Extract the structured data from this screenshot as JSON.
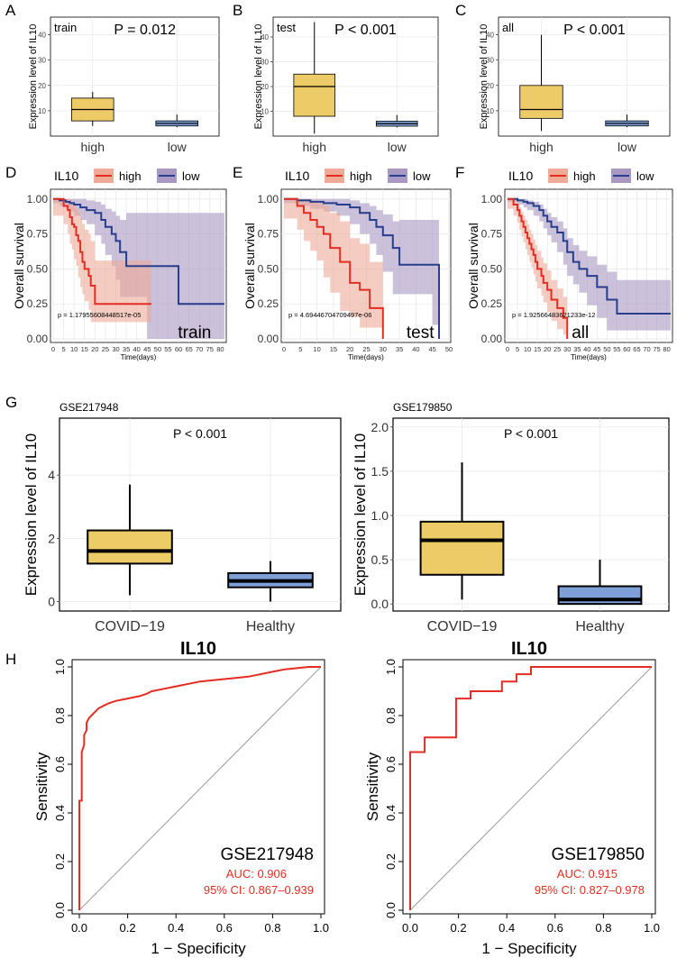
{
  "figure": {
    "panel_letters": [
      "A",
      "B",
      "C",
      "D",
      "E",
      "F",
      "G",
      "H"
    ],
    "colors": {
      "high_fill": "#EDCB66",
      "low_fill": "#7F9FD9",
      "km_high": "#E32D22",
      "km_low": "#283E8C",
      "km_high_band": "#EFAA98",
      "km_low_band": "#A898C2",
      "roc": "#E32D22",
      "grid": "#E6E6E6",
      "diag": "#9A9A9A"
    }
  },
  "chart_data": [
    {
      "id": "A",
      "type": "box",
      "subset_label": "train",
      "pvalue": "P = 0.012",
      "ylabel": "Expression level of IL10",
      "ylim": [
        0,
        47
      ],
      "yticks": [
        10,
        20,
        30,
        40
      ],
      "categories": [
        "high",
        "low"
      ],
      "boxes": [
        {
          "min": 4,
          "q1": 6,
          "median": 10.5,
          "q3": 15,
          "max": 17.5
        },
        {
          "min": 3.5,
          "q1": 4,
          "median": 5,
          "q3": 6,
          "max": 8.5
        }
      ]
    },
    {
      "id": "B",
      "type": "box",
      "subset_label": "test",
      "pvalue": "P < 0.001",
      "ylabel": "Expression level of IL10",
      "ylim": [
        0,
        48
      ],
      "yticks": [
        10,
        20,
        30,
        40
      ],
      "categories": [
        "high",
        "low"
      ],
      "boxes": [
        {
          "min": 1,
          "q1": 8,
          "median": 20,
          "q3": 25,
          "max": 46
        },
        {
          "min": 3.5,
          "q1": 4,
          "median": 5,
          "q3": 6,
          "max": 8.5
        }
      ]
    },
    {
      "id": "C",
      "type": "box",
      "subset_label": "all",
      "pvalue": "P < 0.001",
      "ylabel": "Expression level of IL10",
      "ylim": [
        0,
        47
      ],
      "yticks": [
        10,
        20,
        30,
        40
      ],
      "categories": [
        "high",
        "low"
      ],
      "boxes": [
        {
          "min": 2,
          "q1": 7,
          "median": 10.5,
          "q3": 20,
          "max": 40
        },
        {
          "min": 3.5,
          "q1": 4,
          "median": 5,
          "q3": 6,
          "max": 8.5
        }
      ]
    },
    {
      "id": "D",
      "type": "line",
      "legend_title": "IL10",
      "legend": [
        "high",
        "low"
      ],
      "ylabel": "Overall survival",
      "xlabel": "Time(days)",
      "xlim": [
        0,
        82
      ],
      "ylim": [
        0,
        1.05
      ],
      "xticks": [
        0,
        5,
        10,
        15,
        20,
        25,
        30,
        35,
        40,
        45,
        50,
        55,
        60,
        65,
        70,
        75,
        80
      ],
      "yticks": [
        "0.00",
        "0.25",
        "0.50",
        "0.75",
        "1.00"
      ],
      "pvalue": "p = 1.17955608448517e-05",
      "subset_label": "train",
      "series": [
        {
          "name": "high",
          "x": [
            0,
            5,
            7,
            8,
            9,
            10,
            11,
            12,
            13,
            14,
            15,
            17,
            18,
            20,
            47
          ],
          "y": [
            1.0,
            0.95,
            0.92,
            0.87,
            0.82,
            0.8,
            0.74,
            0.7,
            0.62,
            0.55,
            0.5,
            0.45,
            0.38,
            0.25,
            0.25
          ],
          "lower": [
            1.0,
            0.88,
            0.82,
            0.75,
            0.68,
            0.64,
            0.57,
            0.52,
            0.44,
            0.37,
            0.32,
            0.27,
            0.21,
            0.12,
            0.12
          ],
          "upper": [
            1.0,
            1.0,
            1.0,
            0.99,
            0.97,
            0.96,
            0.93,
            0.91,
            0.86,
            0.82,
            0.78,
            0.75,
            0.7,
            0.56,
            0.56
          ]
        },
        {
          "name": "low",
          "x": [
            0,
            3,
            6,
            8,
            10,
            13,
            16,
            20,
            23,
            25,
            28,
            30,
            32,
            35,
            40,
            45,
            60,
            82
          ],
          "y": [
            1.0,
            0.99,
            0.98,
            0.97,
            0.96,
            0.94,
            0.92,
            0.9,
            0.85,
            0.8,
            0.75,
            0.7,
            0.62,
            0.52,
            0.52,
            0.52,
            0.25,
            0.25
          ],
          "lower": [
            1.0,
            0.97,
            0.95,
            0.93,
            0.91,
            0.88,
            0.85,
            0.82,
            0.74,
            0.68,
            0.6,
            0.52,
            0.42,
            0.3,
            0.3,
            0.3,
            0.0,
            0.0
          ],
          "upper": [
            1.0,
            1.0,
            1.0,
            1.0,
            1.0,
            1.0,
            0.99,
            0.98,
            0.96,
            0.93,
            0.91,
            0.88,
            0.85,
            0.9,
            0.9,
            0.9,
            0.9,
            0.9
          ]
        }
      ]
    },
    {
      "id": "E",
      "type": "line",
      "legend_title": "IL10",
      "legend": [
        "high",
        "low"
      ],
      "ylabel": "Overall survival",
      "xlabel": "Time(days)",
      "xlim": [
        0,
        50
      ],
      "ylim": [
        0,
        1.05
      ],
      "xticks": [
        0,
        5,
        10,
        15,
        20,
        25,
        30,
        35,
        40,
        45,
        50
      ],
      "yticks": [
        "0.00",
        "0.25",
        "0.50",
        "0.75",
        "1.00"
      ],
      "pvalue": "p = 4.69446704709497e-06",
      "subset_label": "test",
      "series": [
        {
          "name": "high",
          "x": [
            0,
            4,
            6,
            8,
            10,
            12,
            14,
            17,
            20,
            23,
            26,
            30,
            30
          ],
          "y": [
            1.0,
            0.95,
            0.9,
            0.85,
            0.8,
            0.75,
            0.65,
            0.55,
            0.4,
            0.35,
            0.22,
            0.22,
            0.0
          ],
          "lower": [
            1.0,
            0.86,
            0.78,
            0.7,
            0.63,
            0.56,
            0.44,
            0.33,
            0.2,
            0.16,
            0.08,
            0.08,
            0.0
          ],
          "upper": [
            1.0,
            1.0,
            1.0,
            0.99,
            0.97,
            0.95,
            0.9,
            0.84,
            0.72,
            0.68,
            0.55,
            0.55,
            0.55
          ]
        },
        {
          "name": "low",
          "x": [
            0,
            4,
            8,
            12,
            16,
            20,
            23,
            26,
            28,
            30,
            33,
            35,
            40,
            45,
            47,
            47
          ],
          "y": [
            1.0,
            0.99,
            0.98,
            0.97,
            0.96,
            0.94,
            0.9,
            0.85,
            0.8,
            0.74,
            0.65,
            0.53,
            0.53,
            0.53,
            0.35,
            0.0
          ],
          "lower": [
            1.0,
            0.97,
            0.95,
            0.93,
            0.91,
            0.88,
            0.82,
            0.75,
            0.68,
            0.6,
            0.48,
            0.32,
            0.32,
            0.32,
            0.1,
            0.0
          ],
          "upper": [
            1.0,
            1.0,
            1.0,
            1.0,
            1.0,
            0.99,
            0.97,
            0.95,
            0.92,
            0.89,
            0.84,
            0.85,
            0.85,
            0.85,
            0.85,
            0.85
          ]
        }
      ]
    },
    {
      "id": "F",
      "type": "line",
      "legend_title": "IL10",
      "legend": [
        "high",
        "low"
      ],
      "ylabel": "Overall survival",
      "xlabel": "Time(days)",
      "xlim": [
        0,
        82
      ],
      "ylim": [
        0,
        1.05
      ],
      "xticks": [
        0,
        5,
        10,
        15,
        20,
        25,
        30,
        35,
        40,
        45,
        50,
        55,
        60,
        65,
        70,
        75,
        80
      ],
      "yticks": [
        "0.00",
        "0.25",
        "0.50",
        "0.75",
        "1.00"
      ],
      "pvalue": "p = 1.92566483621233e-12",
      "subset_label": "all",
      "series": [
        {
          "name": "high",
          "x": [
            0,
            3,
            5,
            6,
            7,
            8,
            9,
            10,
            11,
            12,
            13,
            14,
            15,
            17,
            18,
            20,
            22,
            25,
            28,
            30,
            30
          ],
          "y": [
            1.0,
            0.96,
            0.92,
            0.88,
            0.84,
            0.8,
            0.76,
            0.72,
            0.68,
            0.64,
            0.6,
            0.55,
            0.5,
            0.45,
            0.4,
            0.35,
            0.28,
            0.22,
            0.15,
            0.1,
            0.0
          ],
          "lower": [
            1.0,
            0.93,
            0.88,
            0.83,
            0.78,
            0.73,
            0.69,
            0.64,
            0.6,
            0.55,
            0.51,
            0.46,
            0.41,
            0.36,
            0.31,
            0.26,
            0.19,
            0.13,
            0.07,
            0.03,
            0.0
          ],
          "upper": [
            1.0,
            0.99,
            0.97,
            0.94,
            0.91,
            0.88,
            0.85,
            0.82,
            0.78,
            0.75,
            0.71,
            0.67,
            0.63,
            0.58,
            0.54,
            0.49,
            0.42,
            0.36,
            0.3,
            0.24,
            0.24
          ]
        },
        {
          "name": "low",
          "x": [
            0,
            5,
            8,
            10,
            13,
            16,
            18,
            20,
            22,
            25,
            28,
            30,
            33,
            36,
            40,
            45,
            50,
            55,
            60,
            82
          ],
          "y": [
            1.0,
            0.99,
            0.98,
            0.97,
            0.95,
            0.92,
            0.88,
            0.84,
            0.8,
            0.76,
            0.7,
            0.62,
            0.55,
            0.5,
            0.45,
            0.37,
            0.28,
            0.18,
            0.18,
            0.18
          ],
          "lower": [
            1.0,
            0.98,
            0.96,
            0.94,
            0.92,
            0.88,
            0.84,
            0.79,
            0.74,
            0.69,
            0.62,
            0.53,
            0.45,
            0.39,
            0.33,
            0.24,
            0.15,
            0.06,
            0.06,
            0.06
          ],
          "upper": [
            1.0,
            1.0,
            1.0,
            0.99,
            0.98,
            0.96,
            0.93,
            0.9,
            0.87,
            0.84,
            0.79,
            0.72,
            0.67,
            0.63,
            0.59,
            0.53,
            0.48,
            0.42,
            0.42,
            0.42
          ]
        }
      ]
    },
    {
      "id": "G1",
      "type": "box",
      "title": "GSE217948",
      "pvalue": "P < 0.001",
      "ylabel": "Expression level of IL10",
      "ylim": [
        -0.3,
        5.8
      ],
      "yticks": [
        0,
        2,
        4
      ],
      "categories": [
        "COVID−19",
        "Healthy"
      ],
      "boxes": [
        {
          "min": 0.2,
          "q1": 1.2,
          "median": 1.6,
          "q3": 2.25,
          "max": 3.7
        },
        {
          "min": 0.0,
          "q1": 0.45,
          "median": 0.65,
          "q3": 0.9,
          "max": 1.28
        }
      ]
    },
    {
      "id": "G2",
      "type": "box",
      "title": "GSE179850",
      "pvalue": "P < 0.001",
      "ylabel": "Expression level of IL10",
      "ylim": [
        -0.08,
        2.1
      ],
      "yticks": [
        "0.0",
        "0.5",
        "1.0",
        "1.5",
        "2.0"
      ],
      "categories": [
        "COVID−19",
        "Healthy"
      ],
      "boxes": [
        {
          "min": 0.05,
          "q1": 0.33,
          "median": 0.72,
          "q3": 0.93,
          "max": 1.6
        },
        {
          "min": 0.0,
          "q1": 0.0,
          "median": 0.05,
          "q3": 0.2,
          "max": 0.5
        }
      ]
    },
    {
      "id": "H1",
      "type": "line",
      "title": "IL10",
      "dataset": "GSE217948",
      "auc": "AUC: 0.906",
      "ci": "95% CI: 0.867–0.939",
      "xlabel": "1 − Specificity",
      "ylabel": "Sensitivity",
      "xlim": [
        0,
        1
      ],
      "ylim": [
        0,
        1
      ],
      "ticks": [
        "0.0",
        "0.2",
        "0.4",
        "0.6",
        "0.8",
        "1.0"
      ],
      "roc": {
        "fpr": [
          0,
          0,
          0.01,
          0.01,
          0.02,
          0.02,
          0.03,
          0.03,
          0.04,
          0.05,
          0.06,
          0.07,
          0.08,
          0.1,
          0.12,
          0.15,
          0.2,
          0.25,
          0.28,
          0.3,
          0.35,
          0.4,
          0.5,
          0.6,
          0.7,
          0.8,
          0.85,
          0.9,
          0.95,
          1.0
        ],
        "tpr": [
          0,
          0.45,
          0.45,
          0.65,
          0.68,
          0.72,
          0.74,
          0.77,
          0.79,
          0.8,
          0.81,
          0.82,
          0.83,
          0.84,
          0.85,
          0.86,
          0.87,
          0.88,
          0.89,
          0.9,
          0.91,
          0.92,
          0.94,
          0.95,
          0.96,
          0.98,
          0.99,
          0.995,
          1.0,
          1.0
        ]
      }
    },
    {
      "id": "H2",
      "type": "line",
      "title": "IL10",
      "dataset": "GSE179850",
      "auc": "AUC: 0.915",
      "ci": "95% CI: 0.827–0.978",
      "xlabel": "1 − Specificity",
      "ylabel": "Sensitivity",
      "xlim": [
        0,
        1
      ],
      "ylim": [
        0,
        1
      ],
      "ticks": [
        "0.0",
        "0.2",
        "0.4",
        "0.6",
        "0.8",
        "1.0"
      ],
      "roc": {
        "fpr": [
          0,
          0,
          0.06,
          0.06,
          0.19,
          0.19,
          0.25,
          0.25,
          0.38,
          0.38,
          0.44,
          0.44,
          0.5,
          0.5,
          1.0
        ],
        "tpr": [
          0,
          0.65,
          0.65,
          0.71,
          0.71,
          0.87,
          0.87,
          0.9,
          0.9,
          0.94,
          0.94,
          0.97,
          0.97,
          1.0,
          1.0
        ]
      }
    }
  ]
}
